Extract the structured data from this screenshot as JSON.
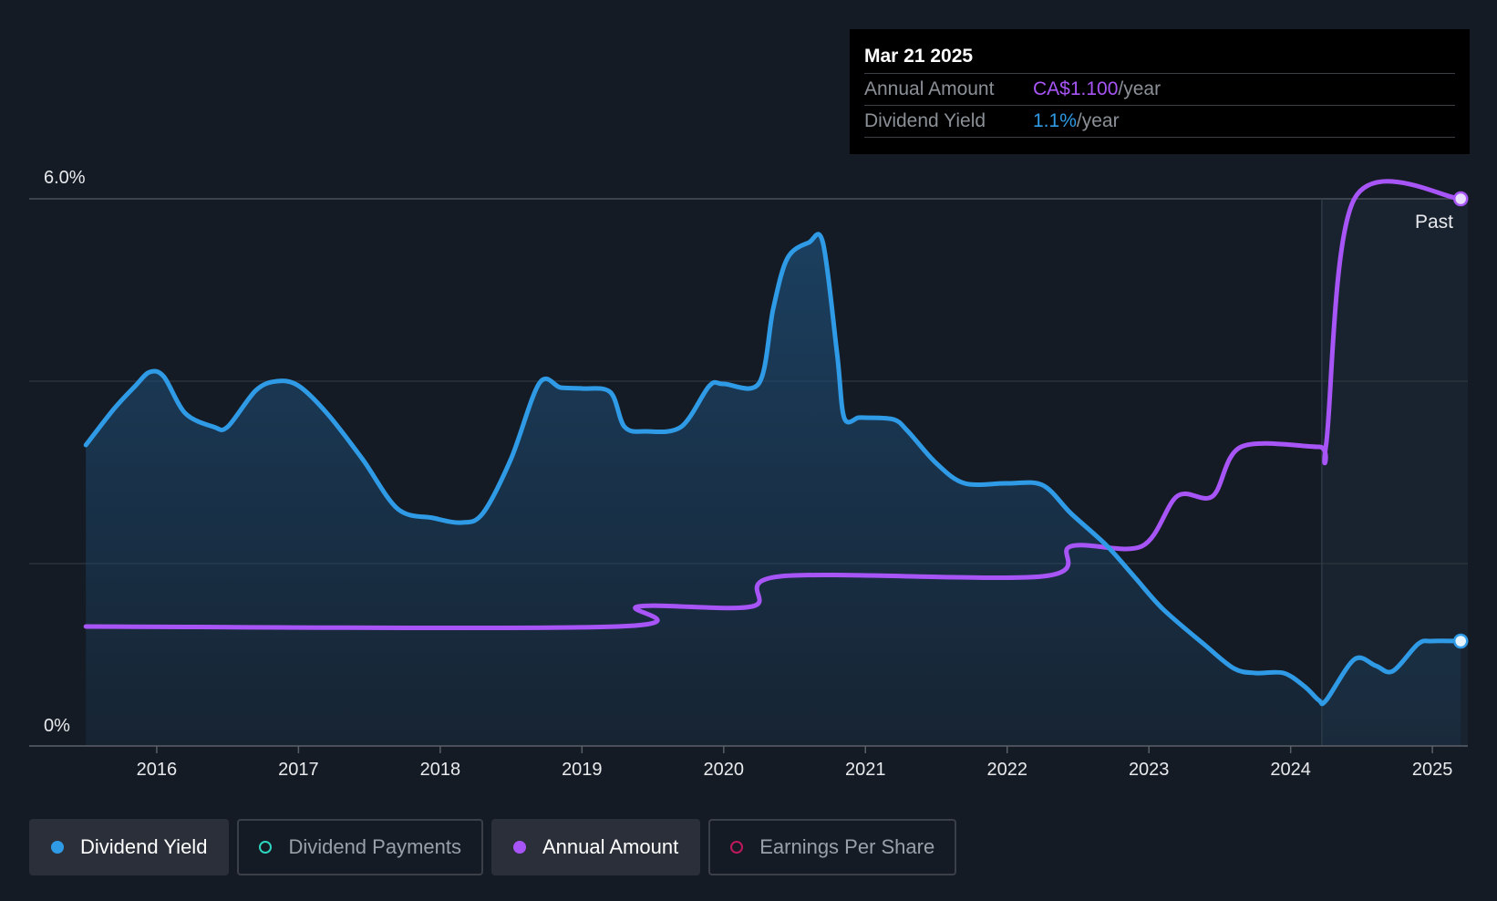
{
  "tooltip": {
    "date": "Mar 21 2025",
    "annual_label": "Annual Amount",
    "annual_value": "CA$1.100",
    "yield_label": "Dividend Yield",
    "yield_value": "1.1%",
    "unit": "/year"
  },
  "colors": {
    "background": "#151b24",
    "dividend_yield": "#2f9be6",
    "annual_amount": "#a855f7",
    "dividend_payments": "#2dd4bf",
    "earnings_per_share": "#be185d"
  },
  "legend": [
    {
      "label": "Dividend Yield",
      "active": true,
      "dot_color": "#2f9be6",
      "filled": true,
      "icon": "dividend-yield-dot-icon"
    },
    {
      "label": "Dividend Payments",
      "active": false,
      "dot_color": "#2dd4bf",
      "filled": false,
      "icon": "dividend-payments-dot-icon"
    },
    {
      "label": "Annual Amount",
      "active": true,
      "dot_color": "#a855f7",
      "filled": true,
      "icon": "annual-amount-dot-icon"
    },
    {
      "label": "Earnings Per Share",
      "active": false,
      "dot_color": "#be185d",
      "filled": false,
      "icon": "earnings-per-share-dot-icon"
    }
  ],
  "chart_data": {
    "type": "line",
    "ylabel_top": "6.0%",
    "ylabel_bottom": "0%",
    "ylim": [
      0,
      6
    ],
    "xlim": [
      2015.1,
      2025.25
    ],
    "past_label": "Past",
    "past_start": 2024.22,
    "grid_values": [
      2,
      4,
      6
    ],
    "x_ticks": [
      2016,
      2017,
      2018,
      2019,
      2020,
      2021,
      2022,
      2023,
      2024,
      2025
    ],
    "x_tick_labels": [
      "2016",
      "2017",
      "2018",
      "2019",
      "2020",
      "2021",
      "2022",
      "2023",
      "2024",
      "2025"
    ],
    "series": [
      {
        "name": "Dividend Yield",
        "color": "#2f9be6",
        "area": true,
        "x": [
          2015.5,
          2015.7,
          2015.85,
          2015.95,
          2016.05,
          2016.2,
          2016.4,
          2016.5,
          2016.7,
          2016.85,
          2017.0,
          2017.2,
          2017.45,
          2017.7,
          2017.95,
          2018.15,
          2018.3,
          2018.5,
          2018.7,
          2018.85,
          2019.0,
          2019.2,
          2019.3,
          2019.45,
          2019.7,
          2019.9,
          2020.0,
          2020.25,
          2020.35,
          2020.45,
          2020.6,
          2020.7,
          2020.8,
          2020.85,
          2020.95,
          2021.0,
          2021.2,
          2021.3,
          2021.5,
          2021.7,
          2022.0,
          2022.25,
          2022.45,
          2022.7,
          2022.9,
          2023.1,
          2023.4,
          2023.6,
          2023.75,
          2023.95,
          2024.1,
          2024.2,
          2024.25,
          2024.45,
          2024.6,
          2024.72,
          2024.9,
          2025.0,
          2025.2
        ],
        "values": [
          3.3,
          3.7,
          3.95,
          4.1,
          4.05,
          3.65,
          3.5,
          3.5,
          3.9,
          4.0,
          3.95,
          3.65,
          3.15,
          2.6,
          2.5,
          2.45,
          2.55,
          3.15,
          3.98,
          3.93,
          3.92,
          3.88,
          3.5,
          3.45,
          3.5,
          3.95,
          3.97,
          3.98,
          4.8,
          5.35,
          5.52,
          5.52,
          4.3,
          3.6,
          3.6,
          3.6,
          3.58,
          3.45,
          3.1,
          2.88,
          2.88,
          2.86,
          2.55,
          2.2,
          1.85,
          1.5,
          1.1,
          0.85,
          0.8,
          0.8,
          0.65,
          0.5,
          0.5,
          0.95,
          0.88,
          0.82,
          1.12,
          1.15,
          1.15
        ]
      },
      {
        "name": "Annual Amount",
        "color": "#a855f7",
        "area": false,
        "x": [
          2015.5,
          2019.25,
          2019.4,
          2020.2,
          2020.4,
          2022.25,
          2022.45,
          2022.95,
          2023.2,
          2023.45,
          2023.65,
          2024.2,
          2024.25,
          2024.45,
          2025.2
        ],
        "values": [
          1.31,
          1.31,
          1.53,
          1.53,
          1.86,
          1.86,
          2.19,
          2.19,
          2.74,
          2.74,
          3.28,
          3.28,
          3.3,
          6.0,
          6.0
        ]
      }
    ]
  }
}
